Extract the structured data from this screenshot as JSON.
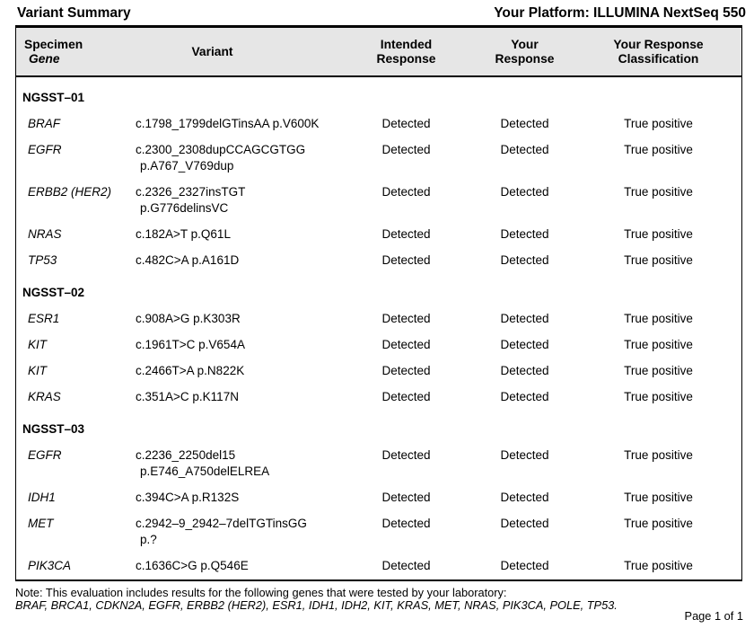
{
  "page": {
    "title": "Variant Summary",
    "platform_label": "Your Platform: ILLUMINA NextSeq 550",
    "note_line1": "Note: This evaluation includes results for the following genes that were tested by your laboratory:",
    "note_line2": "BRAF, BRCA1, CDKN2A, EGFR, ERBB2 (HER2), ESR1, IDH1, IDH2, KIT, KRAS, MET, NRAS, PIK3CA, POLE, TP53.",
    "page_number": "Page 1 of 1"
  },
  "table": {
    "colors": {
      "header_bg": "#e6e6e6",
      "border": "#000000",
      "text": "#000000"
    },
    "headers": {
      "col1_line1": "Specimen",
      "col1_line2": "Gene",
      "col2": "Variant",
      "col3_line1": "Intended",
      "col3_line2": "Response",
      "col4_line1": "Your",
      "col4_line2": "Response",
      "col5_line1": "Your Response",
      "col5_line2": "Classification"
    },
    "sections": [
      {
        "name": "NGSST–01",
        "rows": [
          {
            "gene": "BRAF",
            "variant_lines": [
              "c.1798_1799delGTinsAA p.V600K"
            ],
            "intended": "Detected",
            "your": "Detected",
            "classification": "True positive"
          },
          {
            "gene": "EGFR",
            "variant_lines": [
              "c.2300_2308dupCCAGCGTGG",
              "p.A767_V769dup"
            ],
            "intended": "Detected",
            "your": "Detected",
            "classification": "True positive"
          },
          {
            "gene": "ERBB2 (HER2)",
            "variant_lines": [
              "c.2326_2327insTGT",
              "p.G776delinsVC"
            ],
            "intended": "Detected",
            "your": "Detected",
            "classification": "True positive"
          },
          {
            "gene": "NRAS",
            "variant_lines": [
              "c.182A>T p.Q61L"
            ],
            "intended": "Detected",
            "your": "Detected",
            "classification": "True positive"
          },
          {
            "gene": "TP53",
            "variant_lines": [
              "c.482C>A p.A161D"
            ],
            "intended": "Detected",
            "your": "Detected",
            "classification": "True positive"
          }
        ]
      },
      {
        "name": "NGSST–02",
        "rows": [
          {
            "gene": "ESR1",
            "variant_lines": [
              "c.908A>G p.K303R"
            ],
            "intended": "Detected",
            "your": "Detected",
            "classification": "True positive"
          },
          {
            "gene": "KIT",
            "variant_lines": [
              "c.1961T>C p.V654A"
            ],
            "intended": "Detected",
            "your": "Detected",
            "classification": "True positive"
          },
          {
            "gene": "KIT",
            "variant_lines": [
              "c.2466T>A p.N822K"
            ],
            "intended": "Detected",
            "your": "Detected",
            "classification": "True positive"
          },
          {
            "gene": "KRAS",
            "variant_lines": [
              "c.351A>C p.K117N"
            ],
            "intended": "Detected",
            "your": "Detected",
            "classification": "True positive"
          }
        ]
      },
      {
        "name": "NGSST–03",
        "rows": [
          {
            "gene": "EGFR",
            "variant_lines": [
              "c.2236_2250del15",
              "p.E746_A750delELREA"
            ],
            "intended": "Detected",
            "your": "Detected",
            "classification": "True positive"
          },
          {
            "gene": "IDH1",
            "variant_lines": [
              "c.394C>A p.R132S"
            ],
            "intended": "Detected",
            "your": "Detected",
            "classification": "True positive"
          },
          {
            "gene": "MET",
            "variant_lines": [
              "c.2942–9_2942–7delTGTinsGG",
              "p.?"
            ],
            "intended": "Detected",
            "your": "Detected",
            "classification": "True positive"
          },
          {
            "gene": "PIK3CA",
            "variant_lines": [
              "c.1636C>G p.Q546E"
            ],
            "intended": "Detected",
            "your": "Detected",
            "classification": "True positive"
          }
        ]
      }
    ]
  }
}
